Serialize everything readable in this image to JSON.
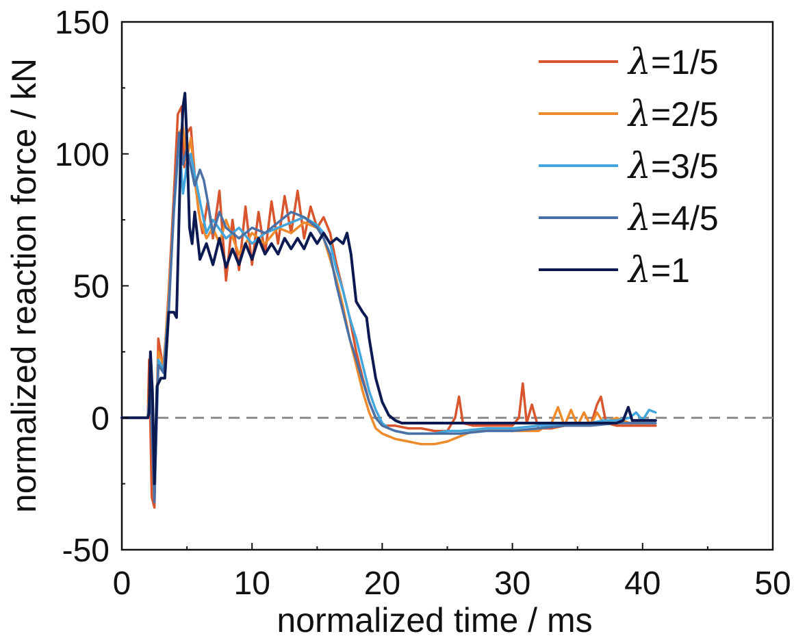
{
  "chart_data": {
    "type": "line",
    "xlabel": "normalized time / ms",
    "ylabel": "normalized reaction force / kN",
    "xlim": [
      0,
      50
    ],
    "ylim": [
      -50,
      150
    ],
    "xticks": [
      "0",
      "10",
      "20",
      "30",
      "40",
      "50"
    ],
    "yticks": [
      "150",
      "100",
      "50",
      "0",
      "-50"
    ],
    "grid": false,
    "reference_line": {
      "y": 0,
      "style": "dashed",
      "color": "#8a8a8a"
    },
    "legend": {
      "placement": "top-right",
      "symbol": "λ"
    },
    "series": [
      {
        "name": "=1/5",
        "color": "#d9552e",
        "x": [
          0,
          1.5,
          2.0,
          2.1,
          2.3,
          2.5,
          2.8,
          3.2,
          3.6,
          4.0,
          4.3,
          4.6,
          4.8,
          5.0,
          5.3,
          5.6,
          5.9,
          6.2,
          6.6,
          7.0,
          7.5,
          8.0,
          8.5,
          9.0,
          9.5,
          10.0,
          10.5,
          11.0,
          11.5,
          12.0,
          12.5,
          13.0,
          13.5,
          14.0,
          14.5,
          15.0,
          15.5,
          16.0,
          16.5,
          17.0,
          17.5,
          18.0,
          18.5,
          19.0,
          19.5,
          20.0,
          20.5,
          21.0,
          22.0,
          23.0,
          24.0,
          25.0,
          25.6,
          25.9,
          26.2,
          27.0,
          28.0,
          29.0,
          30.0,
          30.5,
          30.8,
          31.1,
          31.5,
          32.0,
          33.0,
          34.0,
          35.0,
          36.0,
          36.5,
          36.8,
          37.2,
          38.0,
          39.0,
          40.0,
          41.0
        ],
        "y": [
          0,
          0,
          0,
          22,
          -30,
          -34,
          30,
          18,
          48,
          85,
          115,
          118,
          95,
          108,
          110,
          92,
          78,
          70,
          82,
          68,
          86,
          52,
          75,
          56,
          80,
          58,
          78,
          62,
          82,
          66,
          84,
          70,
          86,
          68,
          80,
          72,
          76,
          70,
          58,
          48,
          38,
          25,
          15,
          6,
          0,
          -3,
          -3,
          -3,
          -4,
          -4,
          -5,
          -5,
          0,
          8,
          -2,
          -3,
          -3,
          -3,
          -3,
          0,
          13,
          -2,
          5,
          -4,
          -4,
          -3,
          -3,
          -3,
          5,
          8,
          -2,
          -3,
          -3,
          -3,
          -3
        ]
      },
      {
        "name": "=2/5",
        "color": "#ef8a2c",
        "x": [
          0,
          1.5,
          2.0,
          2.2,
          2.5,
          2.8,
          3.2,
          3.6,
          4.0,
          4.4,
          4.7,
          5.0,
          5.3,
          5.6,
          6.0,
          6.5,
          7.0,
          7.5,
          8.0,
          9.0,
          10.0,
          11.0,
          12.0,
          13.0,
          14.0,
          15.0,
          15.5,
          16.0,
          16.5,
          17.0,
          17.5,
          18.0,
          18.5,
          19.0,
          19.5,
          20.0,
          20.5,
          21.0,
          22.0,
          23.0,
          24.0,
          25.0,
          26.0,
          27.0,
          28.0,
          30.0,
          32.0,
          33.0,
          33.5,
          34.0,
          34.5,
          35.0,
          35.5,
          36.0,
          36.5,
          37.0,
          38.0,
          39.0,
          40.0,
          41.0
        ],
        "y": [
          0,
          0,
          0,
          20,
          -28,
          25,
          20,
          45,
          80,
          108,
          110,
          98,
          106,
          90,
          75,
          68,
          72,
          66,
          75,
          62,
          70,
          66,
          72,
          70,
          74,
          72,
          68,
          60,
          52,
          42,
          30,
          20,
          10,
          2,
          -4,
          -6,
          -7,
          -8,
          -9,
          -10,
          -10,
          -9,
          -7,
          -5,
          -4,
          -5,
          -5,
          -2,
          4,
          -3,
          3,
          -3,
          2,
          -3,
          2,
          -2,
          0,
          -2,
          -1,
          -1
        ]
      },
      {
        "name": "=3/5",
        "color": "#42a6dd",
        "x": [
          0,
          1.5,
          2.0,
          2.2,
          2.5,
          2.8,
          3.2,
          3.6,
          4.0,
          4.4,
          4.7,
          5.0,
          5.3,
          5.6,
          6.0,
          6.5,
          7.0,
          8.0,
          9.0,
          10.0,
          11.0,
          12.0,
          13.0,
          14.0,
          15.0,
          15.5,
          16.0,
          16.5,
          17.0,
          17.5,
          18.0,
          18.5,
          19.0,
          19.5,
          20.0,
          20.5,
          21.0,
          22.0,
          23.0,
          24.0,
          25.0,
          26.0,
          28.0,
          30.0,
          32.0,
          34.0,
          36.0,
          37.0,
          38.0,
          39.0,
          39.5,
          40.0,
          40.5,
          41.0
        ],
        "y": [
          0,
          0,
          0,
          14,
          -30,
          22,
          18,
          42,
          78,
          105,
          85,
          96,
          100,
          92,
          82,
          70,
          75,
          68,
          72,
          66,
          70,
          72,
          74,
          76,
          73,
          70,
          66,
          56,
          48,
          38,
          30,
          20,
          10,
          3,
          -2,
          -4,
          -5,
          -6,
          -6,
          -6,
          -5,
          -5,
          -4,
          -4,
          -3,
          -3,
          -2,
          -1,
          -1,
          0,
          2,
          -1,
          3,
          2
        ]
      },
      {
        "name": "=4/5",
        "color": "#4a70a6",
        "x": [
          0,
          1.5,
          2.0,
          2.2,
          2.5,
          2.8,
          3.2,
          3.6,
          4.0,
          4.4,
          4.7,
          5.0,
          5.3,
          5.6,
          6.0,
          6.3,
          6.6,
          7.0,
          7.5,
          8.0,
          9.0,
          10.0,
          11.0,
          12.0,
          13.0,
          14.0,
          15.0,
          15.5,
          16.0,
          16.5,
          17.0,
          17.5,
          18.0,
          18.5,
          19.0,
          19.5,
          20.0,
          20.5,
          21.0,
          22.0,
          24.0,
          26.0,
          28.0,
          30.0,
          32.0,
          34.0,
          36.0,
          38.0,
          39.0,
          40.0,
          41.0
        ],
        "y": [
          0,
          0,
          0,
          10,
          -32,
          20,
          17,
          40,
          80,
          108,
          96,
          102,
          95,
          88,
          94,
          90,
          82,
          70,
          78,
          72,
          68,
          72,
          70,
          74,
          78,
          76,
          72,
          68,
          62,
          50,
          40,
          30,
          22,
          14,
          6,
          0,
          -3,
          -4,
          -5,
          -6,
          -6,
          -6,
          -5,
          -5,
          -4,
          -3,
          -3,
          -2,
          -2,
          -2,
          -2
        ]
      },
      {
        "name": "=1",
        "color": "#0c1a52",
        "x": [
          0,
          1.5,
          2.0,
          2.1,
          2.2,
          2.35,
          2.5,
          2.7,
          3.0,
          3.3,
          3.6,
          4.0,
          4.2,
          4.5,
          4.7,
          4.85,
          5.0,
          5.2,
          5.4,
          5.6,
          6.0,
          6.5,
          7.0,
          7.5,
          8.0,
          8.5,
          9.0,
          9.5,
          10.0,
          10.5,
          11.0,
          11.5,
          12.0,
          12.5,
          13.0,
          13.5,
          14.0,
          14.5,
          15.0,
          15.5,
          16.0,
          16.5,
          17.0,
          17.3,
          17.6,
          18.0,
          18.5,
          18.8,
          19.0,
          19.5,
          20.0,
          20.5,
          21.0,
          21.5,
          22.0,
          25.0,
          30.0,
          35.0,
          38.0,
          38.5,
          38.9,
          39.2,
          40.0,
          41.0
        ],
        "y": [
          0,
          0,
          0,
          2,
          25,
          10,
          -25,
          12,
          15,
          15,
          40,
          40,
          38,
          96,
          118,
          123,
          105,
          72,
          66,
          78,
          60,
          66,
          58,
          68,
          57,
          64,
          58,
          66,
          60,
          68,
          62,
          66,
          62,
          68,
          64,
          68,
          64,
          70,
          66,
          70,
          66,
          68,
          66,
          70,
          62,
          44,
          40,
          38,
          30,
          15,
          6,
          1,
          -1,
          -2,
          -2,
          -2,
          -2,
          -2,
          -2,
          -1,
          4,
          -1,
          -1,
          -1
        ]
      }
    ]
  }
}
